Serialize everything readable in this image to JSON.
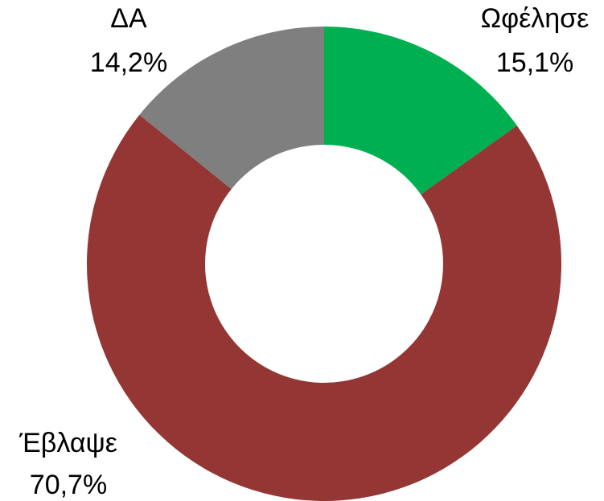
{
  "chart_data": {
    "type": "pie",
    "categories": [
      "Ωφέλησε",
      "Έβλαψε",
      "ΔΑ"
    ],
    "values": [
      15.1,
      70.7,
      14.2
    ],
    "value_labels": [
      "15,1%",
      "70,7%",
      "14,2%"
    ],
    "colors": [
      "#00b050",
      "#943634",
      "#7f7f7f"
    ]
  }
}
